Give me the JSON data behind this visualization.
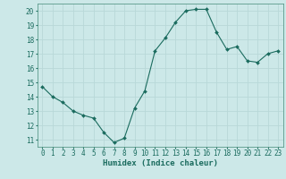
{
  "x": [
    0,
    1,
    2,
    3,
    4,
    5,
    6,
    7,
    8,
    9,
    10,
    11,
    12,
    13,
    14,
    15,
    16,
    17,
    18,
    19,
    20,
    21,
    22,
    23
  ],
  "y": [
    14.7,
    14.0,
    13.6,
    13.0,
    12.7,
    12.5,
    11.5,
    10.8,
    11.1,
    13.2,
    14.4,
    17.2,
    18.1,
    19.2,
    20.0,
    20.1,
    20.1,
    18.5,
    17.3,
    17.5,
    16.5,
    16.4,
    17.0,
    17.2
  ],
  "line_color": "#1a6b5e",
  "marker": "D",
  "marker_size": 2.0,
  "bg_color": "#cce8e8",
  "grid_color": "#b8d8d8",
  "xlabel": "Humidex (Indice chaleur)",
  "ylim": [
    10.5,
    20.5
  ],
  "xlim": [
    -0.5,
    23.5
  ],
  "yticks": [
    11,
    12,
    13,
    14,
    15,
    16,
    17,
    18,
    19,
    20
  ],
  "xticks": [
    0,
    1,
    2,
    3,
    4,
    5,
    6,
    7,
    8,
    9,
    10,
    11,
    12,
    13,
    14,
    15,
    16,
    17,
    18,
    19,
    20,
    21,
    22,
    23
  ],
  "tick_color": "#1a6b5e",
  "label_fontsize": 6.5,
  "tick_fontsize": 5.5,
  "spine_color": "#5a9a8a"
}
